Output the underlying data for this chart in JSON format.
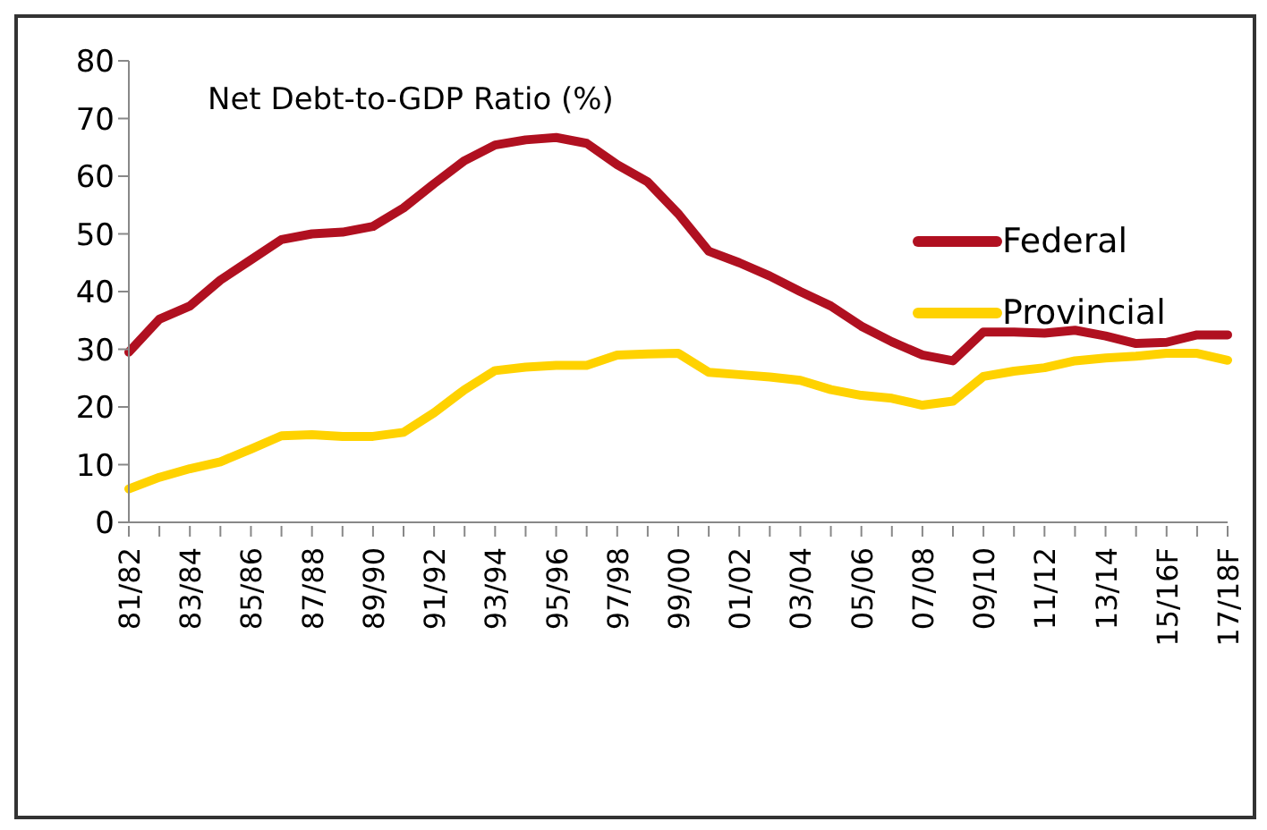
{
  "chart_data": {
    "type": "line",
    "title": "Net Debt-to-GDP Ratio (%)",
    "categories": [
      "81/82",
      null,
      "83/84",
      null,
      "85/86",
      null,
      "87/88",
      null,
      "89/90",
      null,
      "91/92",
      null,
      "93/94",
      null,
      "95/96",
      null,
      "97/98",
      null,
      "99/00",
      null,
      "01/02",
      null,
      "03/04",
      null,
      "05/06",
      null,
      "07/08",
      null,
      "09/10",
      null,
      "11/12",
      null,
      "13/14",
      null,
      "15/16F",
      null,
      "17/18F"
    ],
    "series": [
      {
        "name": "Federal",
        "color": "#b01020",
        "values": [
          29.5,
          35.2,
          37.5,
          42,
          45.5,
          49,
          50,
          50.3,
          51.3,
          54.5,
          58.7,
          62.7,
          65.4,
          66.3,
          66.7,
          65.7,
          62,
          59,
          53.5,
          47,
          45,
          42.7,
          40,
          37.5,
          34,
          31.3,
          29,
          28,
          33,
          33,
          32.8,
          33.3,
          32.3,
          31,
          31.2,
          32.5,
          32.5
        ]
      },
      {
        "name": "Provincial",
        "color": "#ffd200",
        "values": [
          5.8,
          7.8,
          9.3,
          10.5,
          12.7,
          15,
          15.2,
          14.9,
          14.9,
          15.6,
          19,
          23,
          26.3,
          26.9,
          27.2,
          27.2,
          29,
          29.2,
          29.3,
          26,
          25.6,
          25.2,
          24.6,
          23,
          22,
          21.5,
          20.3,
          21,
          25.3,
          26.2,
          26.8,
          28,
          28.5,
          28.8,
          29.3,
          29.3,
          28.1
        ]
      }
    ],
    "ylim": [
      0,
      80
    ],
    "yticks": [
      0,
      10,
      20,
      30,
      40,
      50,
      60,
      70,
      80
    ],
    "grid": false,
    "legend": "right",
    "marker": "none",
    "line_style": "solid"
  }
}
